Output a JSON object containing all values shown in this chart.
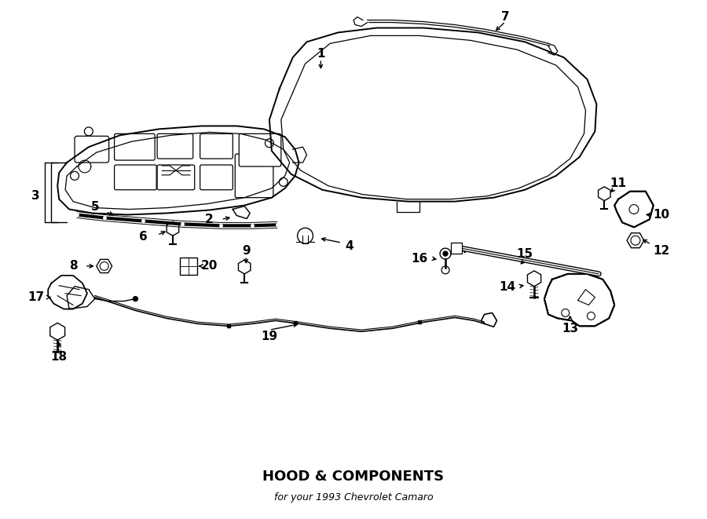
{
  "title": "HOOD & COMPONENTS",
  "subtitle": "for your 1993 Chevrolet Camaro",
  "bg_color": "#ffffff",
  "line_color": "#000000",
  "text_color": "#000000",
  "fig_width": 9.0,
  "fig_height": 6.61
}
